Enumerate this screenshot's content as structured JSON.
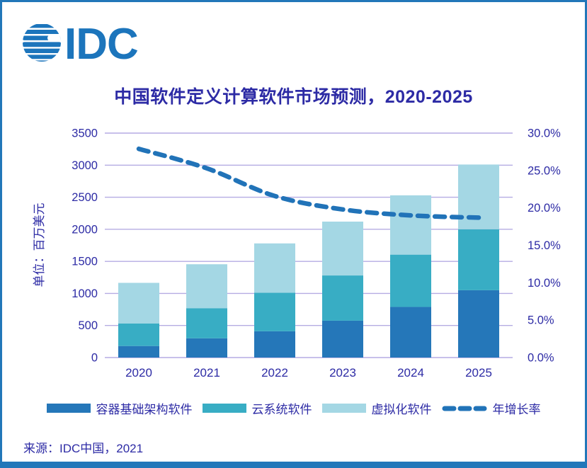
{
  "header": {
    "logo_text": "IDC"
  },
  "title": "中国软件定义计算软件市场预测，2020-2025",
  "source": "来源：IDC中国，2021",
  "colors": {
    "container": "#2577b9",
    "cloud": "#38adc4",
    "virtualization": "#a4d7e4",
    "growth_line": "#2173b8",
    "gridline": "#b5ace3",
    "axis_text": "#2d2ba5",
    "frame": "#2277b9",
    "logo": "#1c75bc"
  },
  "chart_data": {
    "type": "bar",
    "subtype": "stacked-bars-with-growth-line",
    "title": "中国软件定义计算软件市场预测，2020-2025",
    "categories": [
      "2020",
      "2021",
      "2022",
      "2023",
      "2024",
      "2025"
    ],
    "series": [
      {
        "name": "容器基础架构软件",
        "type": "bar",
        "color_key": "container",
        "values": [
          180,
          300,
          410,
          575,
          790,
          1050
        ]
      },
      {
        "name": "云系统软件",
        "type": "bar",
        "color_key": "cloud",
        "values": [
          350,
          470,
          600,
          705,
          815,
          950
        ]
      },
      {
        "name": "虚拟化软件",
        "type": "bar",
        "color_key": "virtualization",
        "values": [
          635,
          685,
          770,
          840,
          925,
          1010
        ]
      }
    ],
    "stacked_totals": [
      1165,
      1455,
      1780,
      2120,
      2530,
      3010
    ],
    "line_series": {
      "name": "年增长率",
      "color_key": "growth_line",
      "values_percent": [
        27.9,
        25.3,
        21.6,
        19.8,
        19.0,
        18.7
      ]
    },
    "ylabel_left": "单位：百万美元",
    "y_left_ticks": [
      "0",
      "500",
      "1000",
      "1500",
      "2000",
      "2500",
      "3000",
      "3500"
    ],
    "ylim_left": [
      0,
      3500
    ],
    "y_right_ticks": [
      "0.0%",
      "5.0%",
      "10.0%",
      "15.0%",
      "20.0%",
      "25.0%",
      "30.0%"
    ],
    "ylim_right_percent": [
      0,
      30
    ],
    "grid": true,
    "legend_position": "bottom"
  }
}
